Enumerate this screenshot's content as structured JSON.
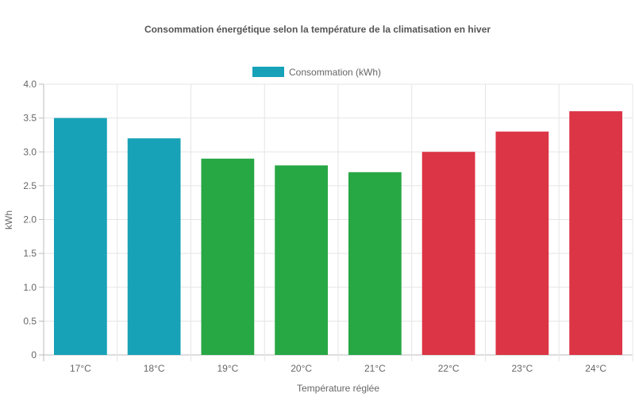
{
  "chart_data": {
    "type": "bar",
    "title": "Consommation énergétique selon la température de la climatisation en hiver",
    "xlabel": "Température réglée",
    "ylabel": "kWh",
    "ylim": [
      0,
      4
    ],
    "yticks": [
      "0",
      "0.5",
      "1.0",
      "1.5",
      "2.0",
      "2.5",
      "3.0",
      "3.5",
      "4.0"
    ],
    "categories": [
      "17°C",
      "18°C",
      "19°C",
      "20°C",
      "21°C",
      "22°C",
      "23°C",
      "24°C"
    ],
    "series": [
      {
        "name": "Consommation (kWh)",
        "values": [
          3.5,
          3.2,
          2.9,
          2.8,
          2.7,
          3.0,
          3.3,
          3.6
        ],
        "colors": [
          "#17a2b8",
          "#17a2b8",
          "#28a745",
          "#28a745",
          "#28a745",
          "#dc3545",
          "#dc3545",
          "#dc3545"
        ]
      }
    ],
    "legend_position": "top",
    "legend_color": "#17a2b8",
    "grid": true
  }
}
